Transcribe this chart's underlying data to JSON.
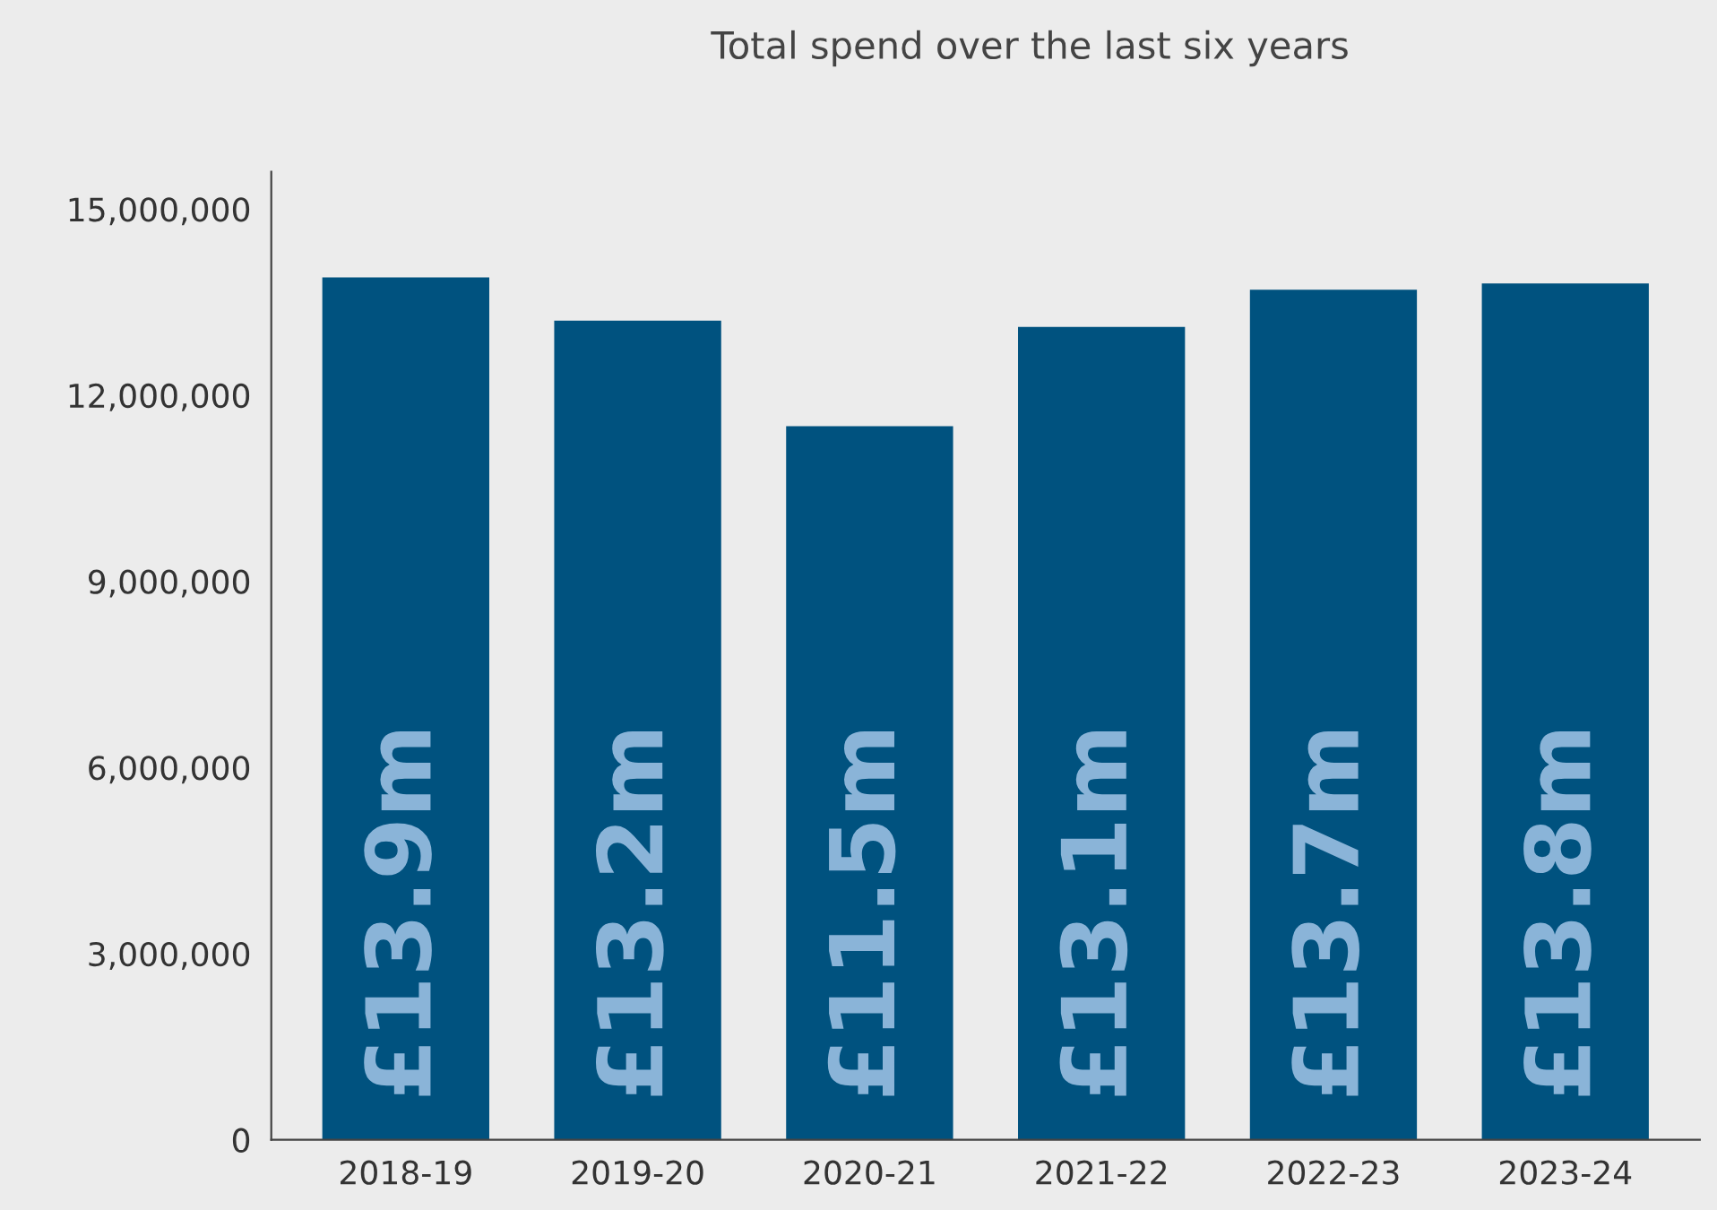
{
  "chart_data": {
    "type": "bar",
    "title": "Total spend over the last six years",
    "categories": [
      "2018-19",
      "2019-20",
      "2020-21",
      "2021-22",
      "2022-23",
      "2023-24"
    ],
    "values": [
      13900000,
      13200000,
      11500000,
      13100000,
      13700000,
      13800000
    ],
    "value_labels": [
      "£13.9m",
      "£13.2m",
      "£11.5m",
      "£13.1m",
      "£13.7m",
      "£13.8m"
    ],
    "color": "#00527f",
    "ylim": [
      0,
      15600000
    ],
    "yticks": [
      0,
      {
        "value": 3000000,
        "label": "3,000,000"
      },
      {
        "value": 6000000,
        "label": "6,000,000"
      },
      {
        "value": 9000000,
        "label": "9,000,000"
      },
      {
        "value": 12000000,
        "label": "12,000,000"
      },
      {
        "value": 15000000,
        "label": "15,000,000"
      }
    ],
    "grid": false
  }
}
